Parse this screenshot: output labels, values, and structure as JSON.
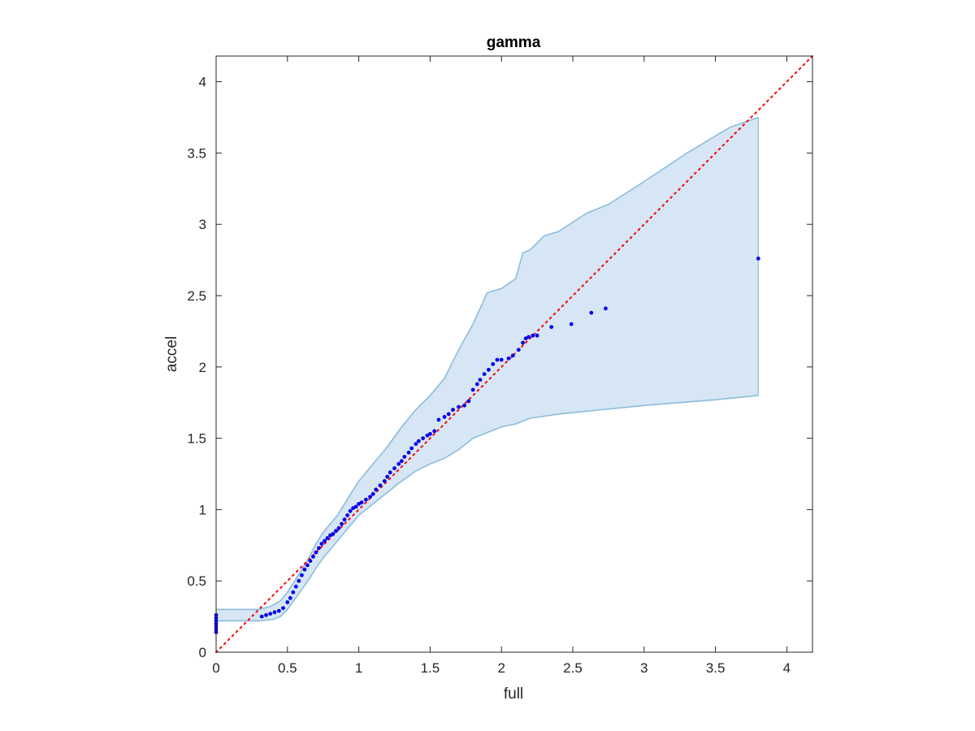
{
  "chart_data": {
    "type": "scatter",
    "title": "gamma",
    "xlabel": "full",
    "ylabel": "accel",
    "xlim": [
      0,
      4.18
    ],
    "ylim": [
      0,
      4.18
    ],
    "xticks": [
      0,
      0.5,
      1,
      1.5,
      2,
      2.5,
      3,
      3.5,
      4
    ],
    "yticks": [
      0,
      0.5,
      1,
      1.5,
      2,
      2.5,
      3,
      3.5,
      4
    ],
    "xtick_labels": [
      "0",
      "0.5",
      "1",
      "1.5",
      "2",
      "2.5",
      "3",
      "3.5",
      "4"
    ],
    "ytick_labels": [
      "0",
      "0.5",
      "1",
      "1.5",
      "2",
      "2.5",
      "3",
      "3.5",
      "4"
    ],
    "grid": false,
    "reference_line": {
      "slope": 1,
      "intercept": 0,
      "style": "dotted",
      "color": "#ff0000"
    },
    "band": {
      "color": "#d6e6f4",
      "edge_color": "#8cbcdc",
      "upper": [
        [
          0,
          0.3
        ],
        [
          0.3,
          0.3
        ],
        [
          0.38,
          0.32
        ],
        [
          0.45,
          0.36
        ],
        [
          0.5,
          0.42
        ],
        [
          0.55,
          0.5
        ],
        [
          0.6,
          0.58
        ],
        [
          0.65,
          0.66
        ],
        [
          0.7,
          0.76
        ],
        [
          0.75,
          0.84
        ],
        [
          0.8,
          0.9
        ],
        [
          0.85,
          0.96
        ],
        [
          0.9,
          1.04
        ],
        [
          0.95,
          1.12
        ],
        [
          1.0,
          1.2
        ],
        [
          1.05,
          1.26
        ],
        [
          1.1,
          1.32
        ],
        [
          1.15,
          1.38
        ],
        [
          1.2,
          1.44
        ],
        [
          1.3,
          1.58
        ],
        [
          1.4,
          1.7
        ],
        [
          1.5,
          1.8
        ],
        [
          1.55,
          1.86
        ],
        [
          1.6,
          1.92
        ],
        [
          1.7,
          2.12
        ],
        [
          1.8,
          2.3
        ],
        [
          1.9,
          2.52
        ],
        [
          2.0,
          2.55
        ],
        [
          2.1,
          2.62
        ],
        [
          2.15,
          2.8
        ],
        [
          2.2,
          2.82
        ],
        [
          2.3,
          2.92
        ],
        [
          2.4,
          2.95
        ],
        [
          2.6,
          3.08
        ],
        [
          2.75,
          3.14
        ],
        [
          3.0,
          3.3
        ],
        [
          3.3,
          3.5
        ],
        [
          3.6,
          3.68
        ],
        [
          3.8,
          3.75
        ]
      ],
      "lower": [
        [
          0,
          0.22
        ],
        [
          0.3,
          0.22
        ],
        [
          0.4,
          0.23
        ],
        [
          0.45,
          0.25
        ],
        [
          0.5,
          0.3
        ],
        [
          0.55,
          0.37
        ],
        [
          0.6,
          0.44
        ],
        [
          0.65,
          0.51
        ],
        [
          0.7,
          0.59
        ],
        [
          0.75,
          0.66
        ],
        [
          0.8,
          0.72
        ],
        [
          0.85,
          0.78
        ],
        [
          0.9,
          0.84
        ],
        [
          0.95,
          0.9
        ],
        [
          1.0,
          0.96
        ],
        [
          1.1,
          1.04
        ],
        [
          1.2,
          1.12
        ],
        [
          1.3,
          1.2
        ],
        [
          1.4,
          1.27
        ],
        [
          1.5,
          1.32
        ],
        [
          1.6,
          1.36
        ],
        [
          1.7,
          1.42
        ],
        [
          1.8,
          1.5
        ],
        [
          1.9,
          1.54
        ],
        [
          2.0,
          1.58
        ],
        [
          2.1,
          1.6
        ],
        [
          2.2,
          1.64
        ],
        [
          2.4,
          1.67
        ],
        [
          2.7,
          1.7
        ],
        [
          3.0,
          1.73
        ],
        [
          3.5,
          1.77
        ],
        [
          3.8,
          1.8
        ]
      ]
    },
    "series": [
      {
        "color": "#0000ee",
        "points": [
          [
            0,
            0.14
          ],
          [
            0,
            0.16
          ],
          [
            0,
            0.18
          ],
          [
            0,
            0.2
          ],
          [
            0,
            0.22
          ],
          [
            0,
            0.24
          ],
          [
            0,
            0.26
          ],
          [
            0.32,
            0.25
          ],
          [
            0.35,
            0.26
          ],
          [
            0.38,
            0.27
          ],
          [
            0.41,
            0.28
          ],
          [
            0.44,
            0.29
          ],
          [
            0.47,
            0.31
          ],
          [
            0.5,
            0.35
          ],
          [
            0.52,
            0.38
          ],
          [
            0.54,
            0.42
          ],
          [
            0.56,
            0.46
          ],
          [
            0.58,
            0.5
          ],
          [
            0.6,
            0.54
          ],
          [
            0.62,
            0.58
          ],
          [
            0.64,
            0.61
          ],
          [
            0.66,
            0.64
          ],
          [
            0.68,
            0.67
          ],
          [
            0.7,
            0.7
          ],
          [
            0.72,
            0.73
          ],
          [
            0.74,
            0.76
          ],
          [
            0.76,
            0.78
          ],
          [
            0.78,
            0.8
          ],
          [
            0.8,
            0.82
          ],
          [
            0.82,
            0.83
          ],
          [
            0.84,
            0.85
          ],
          [
            0.86,
            0.87
          ],
          [
            0.88,
            0.9
          ],
          [
            0.9,
            0.93
          ],
          [
            0.92,
            0.96
          ],
          [
            0.94,
            0.99
          ],
          [
            0.96,
            1.01
          ],
          [
            0.98,
            1.02
          ],
          [
            1.0,
            1.04
          ],
          [
            1.02,
            1.05
          ],
          [
            1.05,
            1.07
          ],
          [
            1.08,
            1.09
          ],
          [
            1.1,
            1.11
          ],
          [
            1.12,
            1.14
          ],
          [
            1.15,
            1.17
          ],
          [
            1.18,
            1.2
          ],
          [
            1.2,
            1.23
          ],
          [
            1.22,
            1.26
          ],
          [
            1.25,
            1.29
          ],
          [
            1.28,
            1.32
          ],
          [
            1.3,
            1.34
          ],
          [
            1.32,
            1.37
          ],
          [
            1.35,
            1.4
          ],
          [
            1.37,
            1.43
          ],
          [
            1.4,
            1.46
          ],
          [
            1.42,
            1.48
          ],
          [
            1.45,
            1.5
          ],
          [
            1.48,
            1.52
          ],
          [
            1.5,
            1.53
          ],
          [
            1.53,
            1.55
          ],
          [
            1.56,
            1.63
          ],
          [
            1.6,
            1.65
          ],
          [
            1.63,
            1.67
          ],
          [
            1.66,
            1.7
          ],
          [
            1.7,
            1.72
          ],
          [
            1.74,
            1.73
          ],
          [
            1.77,
            1.76
          ],
          [
            1.8,
            1.84
          ],
          [
            1.83,
            1.88
          ],
          [
            1.85,
            1.91
          ],
          [
            1.88,
            1.95
          ],
          [
            1.91,
            1.98
          ],
          [
            1.94,
            2.02
          ],
          [
            1.97,
            2.05
          ],
          [
            2.0,
            2.05
          ],
          [
            2.05,
            2.06
          ],
          [
            2.08,
            2.08
          ],
          [
            2.12,
            2.12
          ],
          [
            2.15,
            2.17
          ],
          [
            2.17,
            2.2
          ],
          [
            2.19,
            2.21
          ],
          [
            2.22,
            2.22
          ],
          [
            2.25,
            2.22
          ],
          [
            2.35,
            2.28
          ],
          [
            2.49,
            2.3
          ],
          [
            2.63,
            2.38
          ],
          [
            2.73,
            2.41
          ],
          [
            3.8,
            2.76
          ]
        ]
      }
    ]
  }
}
